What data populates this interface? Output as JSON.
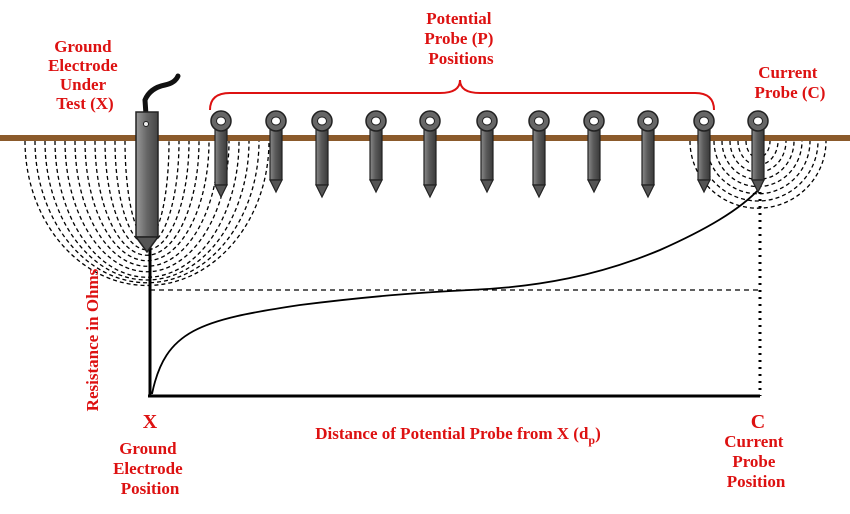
{
  "labels": {
    "ground_electrode": [
      "Ground",
      "Electrode",
      "Under",
      "Test (X)"
    ],
    "potential_probe": [
      "Potential",
      "Probe (P)",
      "Positions"
    ],
    "current_probe": [
      "Current",
      "Probe (C)"
    ],
    "y_axis": "Resistance in Ohms",
    "x_marker": "X",
    "x_position": [
      "Ground",
      "Electrode",
      "Position"
    ],
    "c_marker": "C",
    "c_position": [
      "Current",
      "Probe",
      "Position"
    ],
    "x_axis_main": "Distance of Potential Probe from X (d",
    "x_axis_sub": "p",
    "x_axis_close": ")"
  },
  "colors": {
    "ground": "#8b5a2b",
    "labels": "#dd1111",
    "probe_body": "#555555",
    "line": "#000000"
  },
  "probes": {
    "potential_count": 10,
    "current_count": 1
  }
}
